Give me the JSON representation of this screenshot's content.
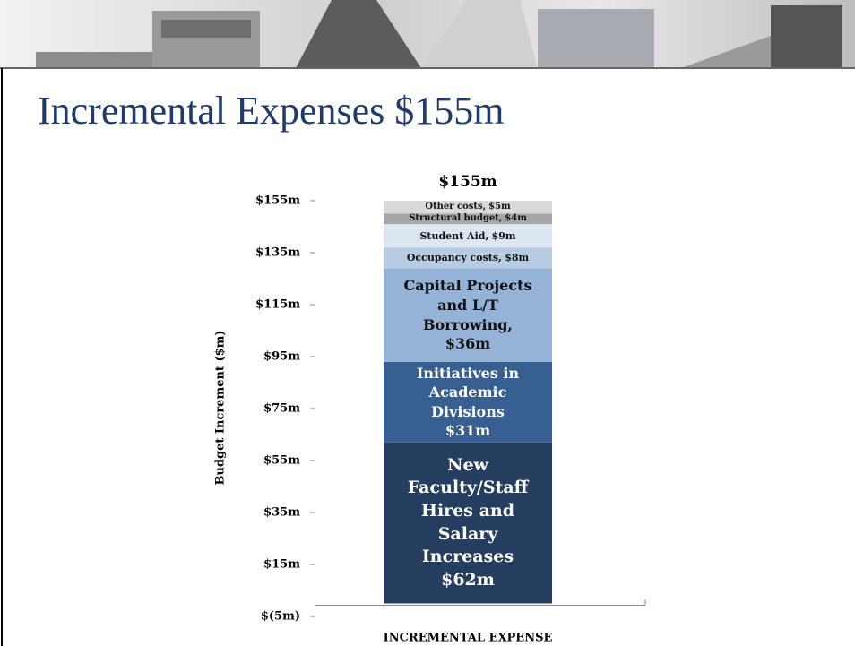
{
  "slide": {
    "title": "Incremental Expenses $155m"
  },
  "chart_data": {
    "type": "stacked-bar",
    "total_label": "$155m",
    "y_label": "Budget Increment ($m)",
    "categories": [
      "INCREMENTAL EXPENSE"
    ],
    "ylim": [
      -5,
      155
    ],
    "yticks": [
      {
        "value": -5,
        "label": "$(5m)"
      },
      {
        "value": 15,
        "label": "$15m"
      },
      {
        "value": 35,
        "label": "$35m"
      },
      {
        "value": 55,
        "label": "$55m"
      },
      {
        "value": 75,
        "label": "$75m"
      },
      {
        "value": 95,
        "label": "$95m"
      },
      {
        "value": 115,
        "label": "$115m"
      },
      {
        "value": 135,
        "label": "$135m"
      },
      {
        "value": 155,
        "label": "$155m"
      }
    ],
    "series": [
      {
        "name": "New Faculty/Staff Hires and Salary Increases",
        "color": "#253d5e",
        "values": [
          62
        ],
        "value_labels": [
          "$62m"
        ]
      },
      {
        "name": "Initiatives in Academic Divisions",
        "color": "#375f92",
        "values": [
          31
        ],
        "value_labels": [
          "$31m"
        ]
      },
      {
        "name": "Capital Projects and L/T Borrowing,",
        "color": "#95b3d7",
        "values": [
          36
        ],
        "value_labels": [
          "$36m"
        ]
      },
      {
        "name": "Occupancy costs,",
        "color": "#b8cce4",
        "values": [
          8
        ],
        "value_labels": [
          "$8m"
        ]
      },
      {
        "name": "Student Aid,",
        "color": "#dce6f1",
        "values": [
          9
        ],
        "value_labels": [
          "$9m"
        ]
      },
      {
        "name": "Structural budget,",
        "color": "#a6a6a6",
        "values": [
          4
        ],
        "value_labels": [
          "$4m"
        ]
      },
      {
        "name": "Other costs,",
        "color": "#d9d9d9",
        "values": [
          5
        ],
        "value_labels": [
          "$5m"
        ]
      }
    ]
  }
}
